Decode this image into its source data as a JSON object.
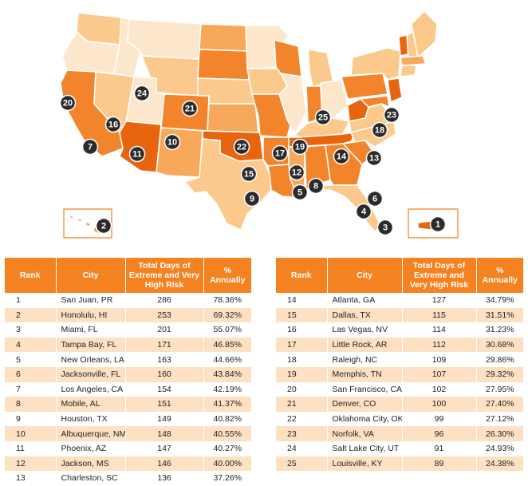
{
  "colors": {
    "map_lightest": "#fde7cc",
    "map_light": "#fbc98b",
    "map_medium": "#f7a85a",
    "map_dark": "#f2852b",
    "map_darkest": "#e8650f",
    "marker": "#2b2b2b",
    "header": "#f58220",
    "row_alt": "#fde1c2"
  },
  "map": {
    "markers": [
      "1",
      "2",
      "3",
      "4",
      "5",
      "6",
      "7",
      "8",
      "9",
      "10",
      "11",
      "12",
      "13",
      "14",
      "15",
      "16",
      "17",
      "18",
      "19",
      "20",
      "21",
      "22",
      "23",
      "24",
      "25"
    ]
  },
  "tables": {
    "headers": {
      "rank": "Rank",
      "city": "City",
      "days": "Total Days of Extreme and Very High Risk",
      "pct": "% Annually"
    },
    "left": [
      {
        "rank": "1",
        "city": "San Juan, PR",
        "days": "286",
        "pct": "78.36%"
      },
      {
        "rank": "2",
        "city": "Honolulu, HI",
        "days": "253",
        "pct": "69.32%"
      },
      {
        "rank": "3",
        "city": "Miami, FL",
        "days": "201",
        "pct": "55.07%"
      },
      {
        "rank": "4",
        "city": "Tampa Bay, FL",
        "days": "171",
        "pct": "46.85%"
      },
      {
        "rank": "5",
        "city": "New Orleans, LA",
        "days": "163",
        "pct": "44.66%"
      },
      {
        "rank": "6",
        "city": "Jacksonville, FL",
        "days": "160",
        "pct": "43.84%"
      },
      {
        "rank": "7",
        "city": "Los Angeles, CA",
        "days": "154",
        "pct": "42.19%"
      },
      {
        "rank": "8",
        "city": "Mobile, AL",
        "days": "151",
        "pct": "41.37%"
      },
      {
        "rank": "9",
        "city": "Houston, TX",
        "days": "149",
        "pct": "40.82%"
      },
      {
        "rank": "10",
        "city": "Albuquerque, NM",
        "days": "148",
        "pct": "40.55%"
      },
      {
        "rank": "11",
        "city": "Phoenix, AZ",
        "days": "147",
        "pct": "40.27%"
      },
      {
        "rank": "12",
        "city": "Jackson, MS",
        "days": "146",
        "pct": "40.00%"
      },
      {
        "rank": "13",
        "city": "Charleston, SC",
        "days": "136",
        "pct": "37.26%"
      }
    ],
    "right": [
      {
        "rank": "14",
        "city": "Atlanta, GA",
        "days": "127",
        "pct": "34.79%"
      },
      {
        "rank": "15",
        "city": "Dallas, TX",
        "days": "115",
        "pct": "31.51%"
      },
      {
        "rank": "16",
        "city": "Las Vegas, NV",
        "days": "114",
        "pct": "31.23%"
      },
      {
        "rank": "17",
        "city": "Little Rock, AR",
        "days": "112",
        "pct": "30.68%"
      },
      {
        "rank": "18",
        "city": "Raleigh, NC",
        "days": "109",
        "pct": "29.86%"
      },
      {
        "rank": "19",
        "city": "Memphis, TN",
        "days": "107",
        "pct": "29.32%"
      },
      {
        "rank": "20",
        "city": "San Francisco, CA",
        "days": "102",
        "pct": "27.95%"
      },
      {
        "rank": "21",
        "city": "Denver, CO",
        "days": "100",
        "pct": "27.40%"
      },
      {
        "rank": "22",
        "city": "Oklahoma City, OK",
        "days": "99",
        "pct": "27.12%"
      },
      {
        "rank": "23",
        "city": "Norfolk, VA",
        "days": "96",
        "pct": "26.30%"
      },
      {
        "rank": "24",
        "city": "Salt Lake City, UT",
        "days": "91",
        "pct": "24.93%"
      },
      {
        "rank": "25",
        "city": "Louisville, KY",
        "days": "89",
        "pct": "24.38%"
      }
    ]
  }
}
